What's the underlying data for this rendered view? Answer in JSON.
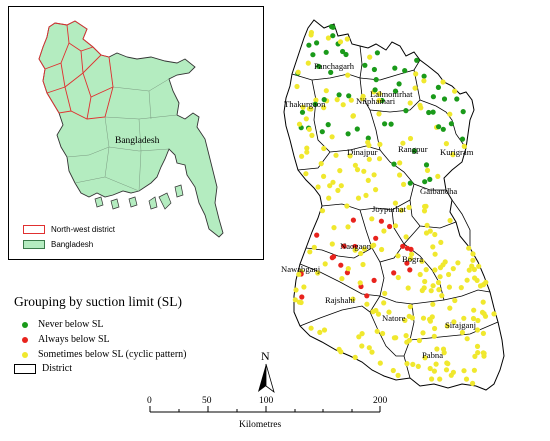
{
  "inset": {
    "country_label": "Bangladesh",
    "legend": [
      {
        "label": "North-west district",
        "swatch": "outline-red"
      },
      {
        "label": "Bangladesh",
        "swatch": "fill-green"
      }
    ]
  },
  "legend": {
    "title": "Grouping by suction limit (SL)",
    "items": [
      {
        "label": "Never below SL",
        "color": "#1a9a1a",
        "symbol": "dot"
      },
      {
        "label": "Always below SL",
        "color": "#e8231d",
        "symbol": "dot"
      },
      {
        "label": "Sometimes below SL (cyclic pattern)",
        "color": "#f0e82e",
        "symbol": "dot"
      },
      {
        "label": "District",
        "color": "#000000",
        "symbol": "box"
      }
    ]
  },
  "districts": [
    "Panchagarh",
    "Lalmonirhat",
    "Nilphamari",
    "Thakurgaon",
    "Dinajpur",
    "Rangpur",
    "Kurigram",
    "Gaibandha",
    "Joypurhat",
    "Naogaon",
    "Bogra",
    "Nawabganj",
    "Rajshahi",
    "Natore",
    "Sirajganj",
    "Pabna"
  ],
  "north_label": "N",
  "scale": {
    "ticks": [
      "0",
      "50",
      "100",
      "200"
    ],
    "unit": "Kilometres"
  },
  "colors": {
    "never": "#1a9a1a",
    "always": "#e8231d",
    "sometimes": "#f0e82e",
    "country_fill": "#b4ecc0",
    "district_outline": "#e03030"
  }
}
